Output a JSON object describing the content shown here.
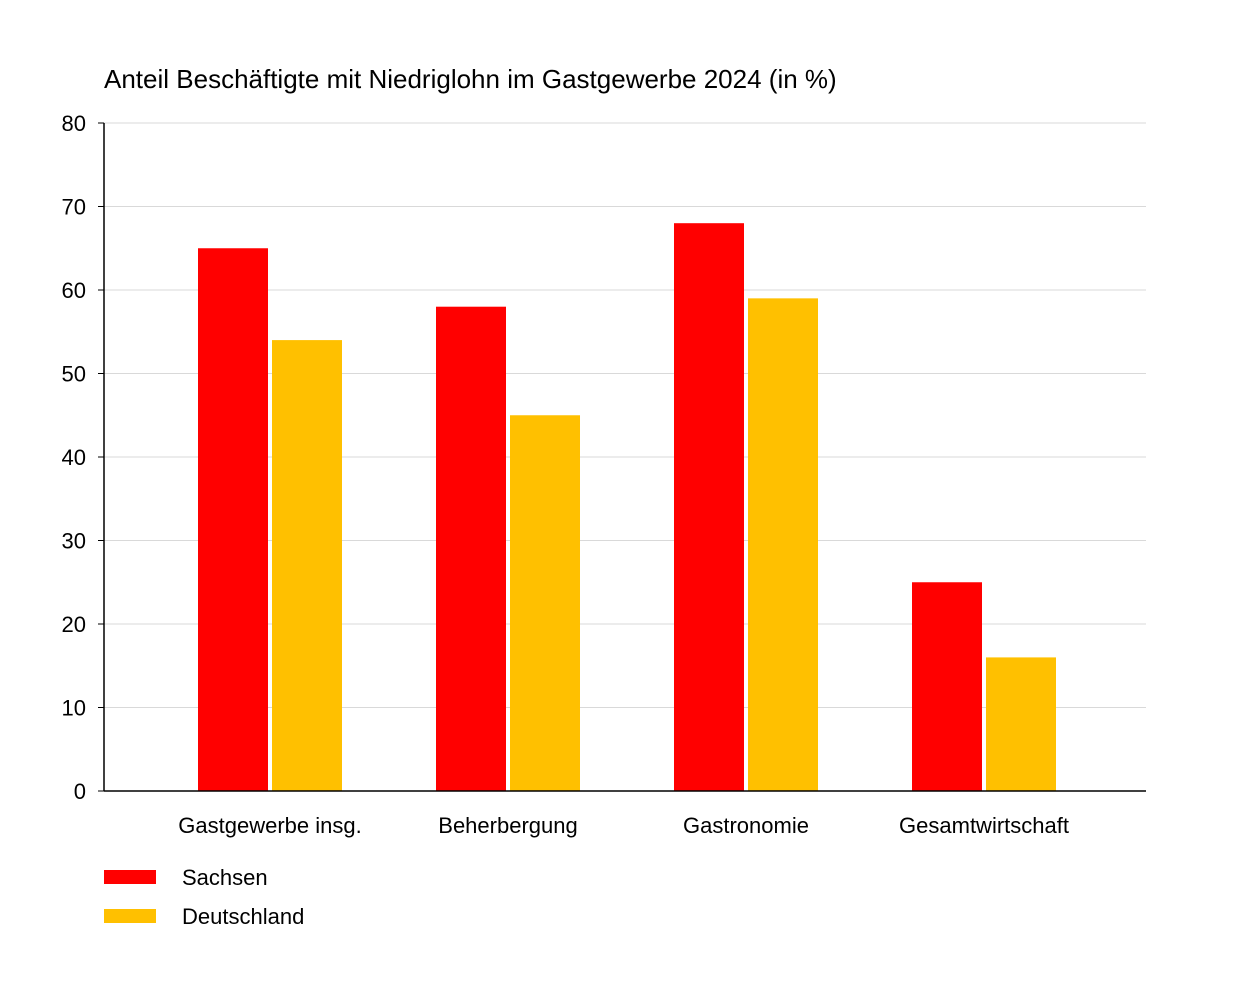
{
  "chart_data": {
    "type": "bar",
    "title": "Anteil Beschäftigte mit Niedriglohn im Gastgewerbe 2024 (in %)",
    "xlabel": "",
    "ylabel": "",
    "ylim": [
      0,
      80
    ],
    "yticks": [
      0,
      10,
      20,
      30,
      40,
      50,
      60,
      70,
      80
    ],
    "grid": true,
    "legend_position": "bottom-left",
    "categories": [
      "Gastgewerbe insg.",
      "Beherbergung",
      "Gastronomie",
      "Gesamtwirtschaft"
    ],
    "series": [
      {
        "name": "Sachsen",
        "color": "#FF0000",
        "values": [
          65,
          58,
          68,
          25
        ]
      },
      {
        "name": "Deutschland",
        "color": "#FFC000",
        "values": [
          54,
          45,
          59,
          16
        ]
      }
    ]
  }
}
